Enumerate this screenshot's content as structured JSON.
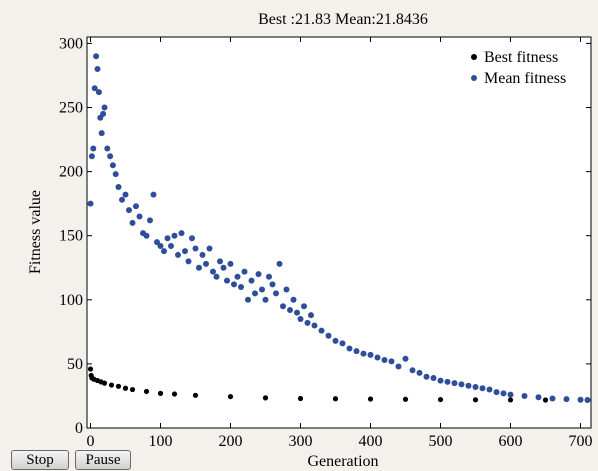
{
  "controls": {
    "stop_label": "Stop",
    "pause_label": "Pause"
  },
  "chart_data": {
    "type": "scatter",
    "title": "Best :21.83 Mean:21.8436",
    "xlabel": "Generation",
    "ylabel": "Fitness value",
    "xlim": [
      -5,
      715
    ],
    "ylim": [
      0,
      305
    ],
    "xticks": [
      0,
      100,
      200,
      300,
      400,
      500,
      600,
      700
    ],
    "yticks": [
      0,
      50,
      100,
      150,
      200,
      250,
      300
    ],
    "grid": false,
    "legend": "top-right",
    "series": [
      {
        "name": "Best fitness",
        "color": "#000000",
        "x": [
          0,
          1,
          2,
          5,
          10,
          15,
          20,
          30,
          40,
          50,
          60,
          80,
          100,
          120,
          150,
          200,
          250,
          300,
          350,
          400,
          450,
          500,
          550,
          600,
          650,
          700,
          710
        ],
        "values": [
          46,
          41,
          39,
          38,
          37,
          36,
          35,
          33.5,
          32.5,
          31,
          30,
          28.5,
          27,
          26.5,
          25.5,
          24.5,
          23.5,
          23,
          22.8,
          22.6,
          22.4,
          22.2,
          22,
          21.9,
          21.85,
          21.83,
          21.83
        ]
      },
      {
        "name": "Mean fitness",
        "color": "#2e4d9a",
        "x": [
          0,
          2,
          4,
          6,
          8,
          10,
          12,
          14,
          16,
          18,
          20,
          24,
          28,
          32,
          36,
          40,
          45,
          50,
          55,
          60,
          65,
          70,
          75,
          80,
          85,
          90,
          95,
          100,
          105,
          110,
          115,
          120,
          125,
          130,
          135,
          140,
          145,
          150,
          155,
          160,
          165,
          170,
          175,
          180,
          185,
          190,
          195,
          200,
          205,
          210,
          215,
          220,
          225,
          230,
          235,
          240,
          245,
          250,
          255,
          260,
          265,
          270,
          275,
          280,
          285,
          290,
          295,
          300,
          305,
          310,
          315,
          320,
          330,
          340,
          350,
          360,
          370,
          380,
          390,
          400,
          410,
          420,
          430,
          440,
          450,
          460,
          470,
          480,
          490,
          500,
          510,
          520,
          530,
          540,
          550,
          560,
          570,
          580,
          590,
          600,
          620,
          640,
          660,
          680,
          700,
          710
        ],
        "values": [
          175,
          212,
          218,
          265,
          290,
          280,
          262,
          242,
          230,
          245,
          250,
          218,
          212,
          205,
          198,
          188,
          178,
          182,
          170,
          160,
          173,
          165,
          152,
          150,
          162,
          182,
          145,
          142,
          138,
          148,
          142,
          150,
          135,
          152,
          138,
          130,
          148,
          140,
          125,
          135,
          128,
          140,
          122,
          118,
          130,
          125,
          115,
          128,
          112,
          118,
          110,
          122,
          100,
          115,
          105,
          120,
          108,
          100,
          118,
          112,
          105,
          128,
          95,
          108,
          92,
          100,
          90,
          85,
          95,
          82,
          88,
          80,
          76,
          72,
          68,
          66,
          62,
          60,
          58,
          57,
          55,
          53,
          52,
          48,
          54,
          45,
          43,
          40,
          39,
          37,
          36,
          35,
          34,
          33,
          32,
          31,
          30,
          28,
          27,
          26,
          25,
          24,
          23,
          22.5,
          22,
          21.84
        ]
      }
    ]
  }
}
